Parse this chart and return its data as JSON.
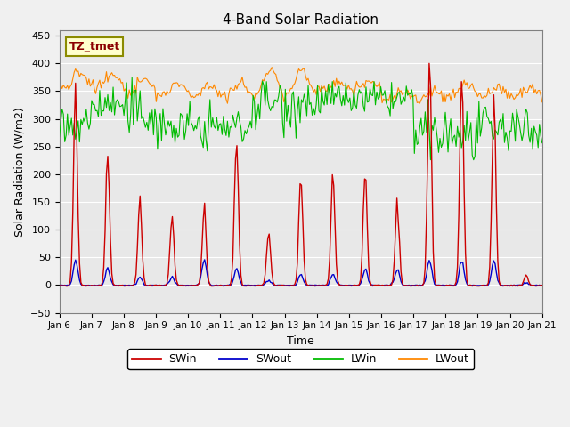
{
  "title": "4-Band Solar Radiation",
  "xlabel": "Time",
  "ylabel": "Solar Radiation (W/m2)",
  "ylim": [
    -50,
    460
  ],
  "bg_color": "#e8e8e8",
  "annotation_text": "TZ_tmet",
  "annotation_bg": "#ffffcc",
  "annotation_border": "#8B8B00",
  "annotation_text_color": "#8B0000",
  "colors": {
    "SWin": "#cc0000",
    "SWout": "#0000cc",
    "LWin": "#00bb00",
    "LWout": "#ff8800"
  },
  "n_points": 360,
  "days": 15,
  "pts_per_day": 24
}
